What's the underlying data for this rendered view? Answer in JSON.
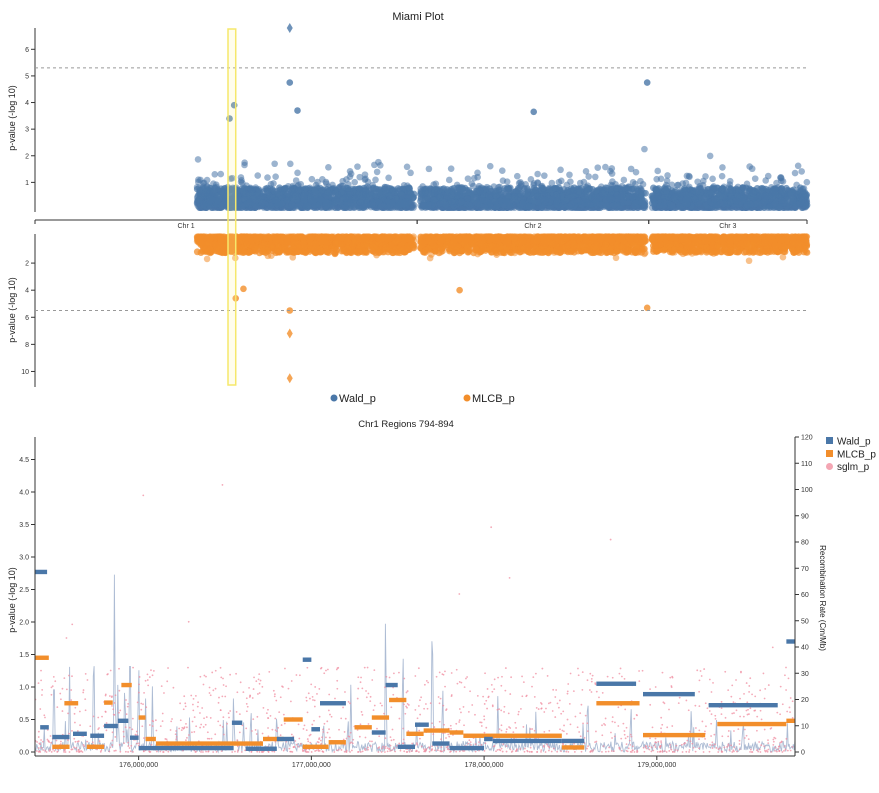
{
  "chart_data": [
    {
      "type": "scatter",
      "title": "Miami Plot",
      "ylabel": "p-value (-log 10)",
      "top": {
        "series_name": "Wald_p",
        "color": "#4a77a8",
        "ylim": [
          0,
          6.8
        ],
        "yticks": [
          "1",
          "2",
          "3",
          "4",
          "5",
          "6"
        ],
        "threshold": 5.3,
        "highlight_points": [
          {
            "pos": 0.33,
            "y": 6.8,
            "shape": "diamond"
          },
          {
            "pos": 0.33,
            "y": 4.75
          },
          {
            "pos": 0.34,
            "y": 3.7
          },
          {
            "pos": 0.258,
            "y": 3.9
          },
          {
            "pos": 0.252,
            "y": 3.4
          },
          {
            "pos": 0.793,
            "y": 4.75
          },
          {
            "pos": 0.646,
            "y": 3.65
          }
        ]
      },
      "bottom": {
        "series_name": "MLCB_p",
        "color": "#f28e2b",
        "ylim": [
          0,
          11
        ],
        "yticks": [
          "2",
          "4",
          "6",
          "8",
          "10"
        ],
        "threshold": 5.5,
        "highlight_points": [
          {
            "pos": 0.33,
            "y": 10.5,
            "shape": "diamond"
          },
          {
            "pos": 0.33,
            "y": 7.2,
            "shape": "diamond"
          },
          {
            "pos": 0.33,
            "y": 5.5
          },
          {
            "pos": 0.26,
            "y": 4.6
          },
          {
            "pos": 0.27,
            "y": 3.9
          },
          {
            "pos": 0.793,
            "y": 5.3
          },
          {
            "pos": 0.55,
            "y": 4.0
          }
        ]
      },
      "chromosomes": [
        {
          "label": "Chr 1",
          "start": 0.0,
          "end": 0.495
        },
        {
          "label": "Chr 2",
          "start": 0.495,
          "end": 0.795
        },
        {
          "label": "Chr 3",
          "start": 0.795,
          "end": 1.0
        }
      ],
      "data_start": 0.21,
      "highlight_region": [
        0.25,
        0.26
      ],
      "legend": [
        "Wald_p",
        "MLCB_p"
      ]
    },
    {
      "type": "line",
      "title": "Chr1 Regions 794-894",
      "ylabel": "p-value (-log 10)",
      "y2label": "Recombination Rate (Cm/Mb)",
      "xlim": [
        175400000,
        179800000
      ],
      "xticks": [
        "176,000,000",
        "177,000,000",
        "178,000,000",
        "179,000,000"
      ],
      "xtick_values": [
        176000000,
        177000000,
        178000000,
        179000000
      ],
      "ylim": [
        0,
        4.8
      ],
      "yticks": [
        "0.0",
        "0.5",
        "1.0",
        "1.5",
        "2.0",
        "2.5",
        "3.0",
        "3.5",
        "4.0",
        "4.5"
      ],
      "y2lim": [
        0,
        120
      ],
      "y2ticks": [
        "0",
        "10",
        "20",
        "30",
        "40",
        "50",
        "60",
        "70",
        "80",
        "90",
        "100",
        "110",
        "120"
      ],
      "legend": [
        "Wald_p",
        "MLCB_p",
        "sglm_p"
      ],
      "series": [
        {
          "name": "Wald_p",
          "color": "#4a77a8",
          "segments": [
            [
              175400000,
              175470000,
              2.77
            ],
            [
              175430000,
              175480000,
              0.38
            ],
            [
              175500000,
              175600000,
              0.23
            ],
            [
              175620000,
              175700000,
              0.28
            ],
            [
              175720000,
              175800000,
              0.25
            ],
            [
              175800000,
              175880000,
              0.4
            ],
            [
              175880000,
              175940000,
              0.48
            ],
            [
              175950000,
              176000000,
              0.22
            ],
            [
              176000000,
              176550000,
              0.06
            ],
            [
              176540000,
              176600000,
              0.45
            ],
            [
              176620000,
              176700000,
              0.05
            ],
            [
              176700000,
              176800000,
              0.05
            ],
            [
              176800000,
              176900000,
              0.2
            ],
            [
              176950000,
              177000000,
              1.42
            ],
            [
              177000000,
              177050000,
              0.35
            ],
            [
              177050000,
              177200000,
              0.75
            ],
            [
              177350000,
              177430000,
              0.3
            ],
            [
              177430000,
              177500000,
              1.03
            ],
            [
              177500000,
              177600000,
              0.08
            ],
            [
              177600000,
              177680000,
              0.42
            ],
            [
              177700000,
              177800000,
              0.13
            ],
            [
              177800000,
              178000000,
              0.06
            ],
            [
              178000000,
              178050000,
              0.2
            ],
            [
              178050000,
              178450000,
              0.17
            ],
            [
              178450000,
              178580000,
              0.17
            ],
            [
              178650000,
              178880000,
              1.05
            ],
            [
              178920000,
              179220000,
              0.89
            ],
            [
              179300000,
              179700000,
              0.72
            ],
            [
              179750000,
              179800000,
              1.7
            ]
          ]
        },
        {
          "name": "MLCB_p",
          "color": "#f28e2b",
          "segments": [
            [
              175400000,
              175480000,
              1.45
            ],
            [
              175500000,
              175600000,
              0.08
            ],
            [
              175570000,
              175650000,
              0.75
            ],
            [
              175700000,
              175800000,
              0.08
            ],
            [
              175800000,
              175850000,
              0.76
            ],
            [
              175900000,
              175960000,
              1.03
            ],
            [
              176000000,
              176040000,
              0.53
            ],
            [
              176040000,
              176100000,
              0.2
            ],
            [
              176100000,
              176500000,
              0.13
            ],
            [
              176500000,
              176720000,
              0.13
            ],
            [
              176720000,
              176840000,
              0.2
            ],
            [
              176840000,
              176950000,
              0.5
            ],
            [
              176950000,
              177100000,
              0.08
            ],
            [
              177100000,
              177200000,
              0.15
            ],
            [
              177250000,
              177350000,
              0.38
            ],
            [
              177350000,
              177450000,
              0.53
            ],
            [
              177450000,
              177550000,
              0.8
            ],
            [
              177550000,
              177650000,
              0.28
            ],
            [
              177650000,
              177800000,
              0.33
            ],
            [
              177800000,
              177880000,
              0.3
            ],
            [
              177880000,
              178450000,
              0.25
            ],
            [
              178450000,
              178580000,
              0.07
            ],
            [
              178650000,
              178900000,
              0.75
            ],
            [
              178920000,
              179280000,
              0.26
            ],
            [
              179350000,
              179750000,
              0.43
            ],
            [
              179750000,
              179800000,
              0.48
            ]
          ]
        },
        {
          "name": "sglm_p",
          "color": "#f4a6b3"
        }
      ],
      "recombination_peaks": [
        [
          175510000,
          40
        ],
        [
          175600000,
          35
        ],
        [
          175740000,
          52
        ],
        [
          175860000,
          73
        ],
        [
          175880000,
          30
        ],
        [
          175920000,
          32
        ],
        [
          175950000,
          55
        ],
        [
          176000000,
          40
        ],
        [
          176040000,
          22
        ],
        [
          176080000,
          27
        ],
        [
          176550000,
          25
        ],
        [
          176650000,
          20
        ],
        [
          176800000,
          18
        ],
        [
          177070000,
          15
        ],
        [
          177230000,
          20
        ],
        [
          177430000,
          60
        ],
        [
          177530000,
          48
        ],
        [
          177700000,
          67
        ],
        [
          177760000,
          30
        ],
        [
          178080000,
          25
        ],
        [
          178300000,
          18
        ],
        [
          178600000,
          28
        ],
        [
          178850000,
          22
        ],
        [
          179200000,
          20
        ],
        [
          179500000,
          16
        ]
      ]
    }
  ]
}
